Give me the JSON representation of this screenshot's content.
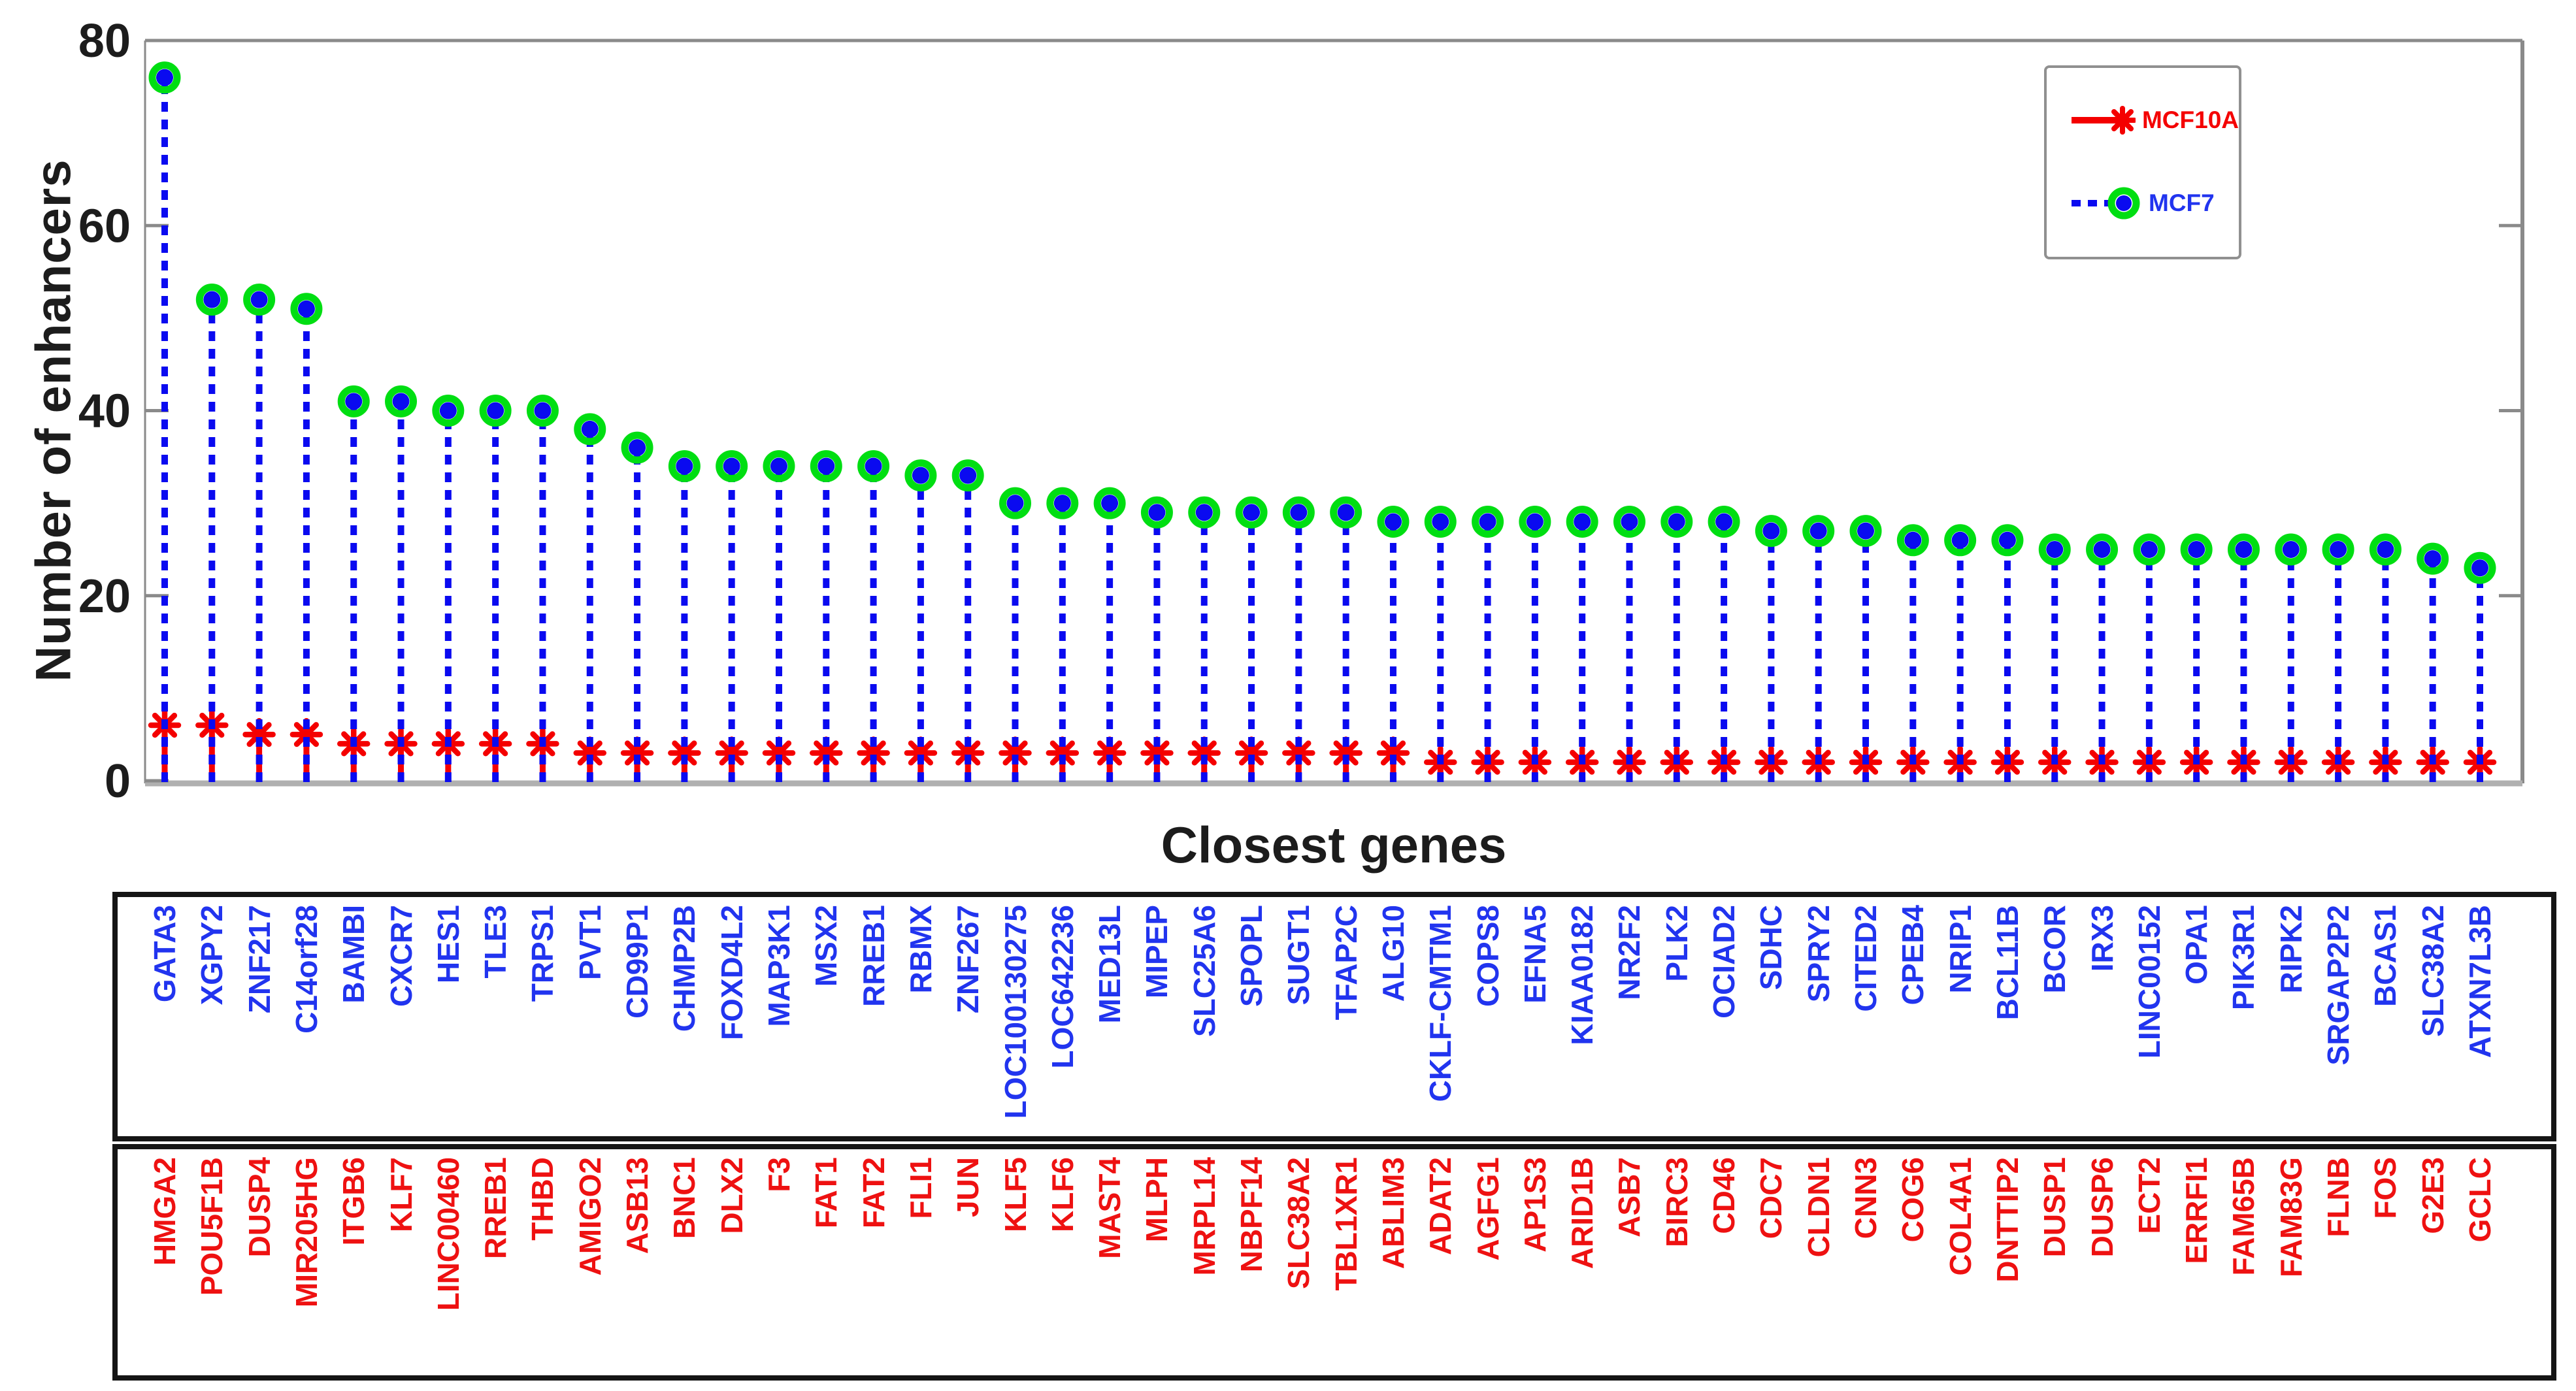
{
  "chart_data": {
    "type": "stem",
    "title": "",
    "xlabel": "Closest genes",
    "ylabel": "Number of enhancers",
    "ylim": [
      0,
      80
    ],
    "yticks": [
      0,
      20,
      40,
      60,
      80
    ],
    "grid": false,
    "legend_position": "top-right",
    "legend": [
      {
        "label": "MCF10A",
        "line": "solid",
        "marker": "red-star"
      },
      {
        "label": "MCF7",
        "line": "dashed",
        "marker": "green-ring-blue-dot"
      }
    ],
    "series": [
      {
        "name": "MCF7",
        "genes": [
          "GATA3",
          "XGPY2",
          "ZNF217",
          "C14orf28",
          "BAMBI",
          "CXCR7",
          "HES1",
          "TLE3",
          "TRPS1",
          "PVT1",
          "CD99P1",
          "CHMP2B",
          "FOXD4L2",
          "MAP3K1",
          "MSX2",
          "RREB1",
          "RBMX",
          "ZNF267",
          "LOC100130275",
          "LOC642236",
          "MED13L",
          "MIPEP",
          "SLC25A6",
          "SPOPL",
          "SUGT1",
          "TFAP2C",
          "ALG10",
          "CKLF-CMTM1",
          "COPS8",
          "EFNA5",
          "KIAA0182",
          "NR2F2",
          "PLK2",
          "OCIAD2",
          "SDHC",
          "SPRY2",
          "CITED2",
          "CPEB4",
          "NRIP1",
          "BCL11B",
          "BCOR",
          "IRX3",
          "LINC00152",
          "OPA1",
          "PIK3R1",
          "RIPK2",
          "SRGAP2P2",
          "BCAS1",
          "SLC38A2",
          "ATXN7L3B"
        ],
        "values": [
          76,
          52,
          52,
          51,
          41,
          41,
          40,
          40,
          40,
          38,
          36,
          34,
          34,
          34,
          34,
          34,
          33,
          33,
          30,
          30,
          30,
          29,
          29,
          29,
          29,
          29,
          28,
          28,
          28,
          28,
          28,
          28,
          28,
          28,
          27,
          27,
          27,
          26,
          26,
          26,
          25,
          25,
          25,
          25,
          25,
          25,
          25,
          25,
          24,
          23
        ]
      },
      {
        "name": "MCF10A",
        "genes": [
          "HMGA2",
          "POU5F1B",
          "DUSP4",
          "MIR205HG",
          "ITGB6",
          "KLF7",
          "LINC00460",
          "RREB1",
          "THBD",
          "AMIGO2",
          "ASB13",
          "BNC1",
          "DLX2",
          "F3",
          "FAT1",
          "FAT2",
          "FLI1",
          "JUN",
          "KLF5",
          "KLF6",
          "MAST4",
          "MLPH",
          "MRPL14",
          "NBPF14",
          "SLC38A2",
          "TBL1XR1",
          "ABLIM3",
          "ADAT2",
          "AGFG1",
          "AP1S3",
          "ARID1B",
          "ASB7",
          "BIRC3",
          "CD46",
          "CDC7",
          "CLDN1",
          "CNN3",
          "COG6",
          "COL4A1",
          "DNTTIP2",
          "DUSP1",
          "DUSP6",
          "ECT2",
          "ERRFI1",
          "FAM65B",
          "FAM83G",
          "FLNB",
          "FOS",
          "G2E3",
          "GCLC"
        ],
        "values": [
          6,
          6,
          5,
          5,
          4,
          4,
          4,
          4,
          4,
          3,
          3,
          3,
          3,
          3,
          3,
          3,
          3,
          3,
          3,
          3,
          3,
          3,
          3,
          3,
          3,
          3,
          3,
          2,
          2,
          2,
          2,
          2,
          2,
          2,
          2,
          2,
          2,
          2,
          2,
          2,
          2,
          2,
          2,
          2,
          2,
          2,
          2,
          2,
          2,
          2
        ]
      }
    ]
  },
  "colors": {
    "mcf7_blue": "#0a0af0",
    "mcf7_label_blue": "#2134ef",
    "mcf7_marker_green": "#00de12",
    "mcf10a_red": "#f40000",
    "mcf10a_label_red": "#ee1111",
    "axis_gray": "#8a8a8a",
    "baseline_gray": "#b0b0b0",
    "text_black": "#1c1c1c",
    "background": "#ffffff"
  }
}
